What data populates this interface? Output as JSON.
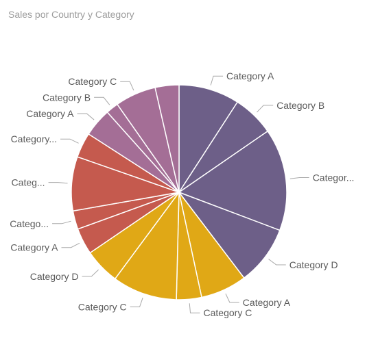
{
  "chart_data": {
    "type": "pie",
    "title": "Sales por Country y Category",
    "slices": [
      {
        "label": "Category A",
        "value": 9.2,
        "group_color": "#6d5f88"
      },
      {
        "label": "Category B",
        "value": 6.3,
        "group_color": "#6d5f88"
      },
      {
        "label": "Categor...",
        "value": 15.5,
        "group_color": "#6d5f88"
      },
      {
        "label": "Category D",
        "value": 9.0,
        "group_color": "#6d5f88"
      },
      {
        "label": "Category A",
        "value": 7.0,
        "group_color": "#e0a816"
      },
      {
        "label": "Category C",
        "value": 3.8,
        "group_color": "#e0a816"
      },
      {
        "label": "Category C",
        "value": 9.8,
        "group_color": "#e0a816"
      },
      {
        "label": "Category D",
        "value": 5.4,
        "group_color": "#e0a816"
      },
      {
        "label": "Category A",
        "value": 4.0,
        "group_color": "#c55a4e"
      },
      {
        "label": "Catego...",
        "value": 2.8,
        "group_color": "#c55a4e"
      },
      {
        "label": "Categ...",
        "value": 8.2,
        "group_color": "#c55a4e"
      },
      {
        "label": "Category...",
        "value": 3.8,
        "group_color": "#c55a4e"
      },
      {
        "label": "Category A",
        "value": 4.3,
        "group_color": "#a46e96"
      },
      {
        "label": "Category B",
        "value": 1.9,
        "group_color": "#a46e96"
      },
      {
        "label": "Category C",
        "value": 6.2,
        "group_color": "#a46e96"
      },
      {
        "label": "",
        "value": 3.6,
        "group_color": "#a46e96"
      }
    ]
  }
}
